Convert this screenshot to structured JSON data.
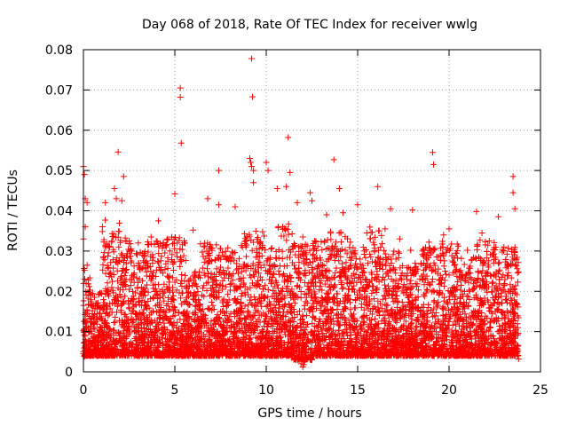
{
  "chart_data": {
    "type": "scatter",
    "title": "Day 068 of 2018, Rate Of TEC Index for receiver wwlg",
    "xlabel": "GPS time / hours",
    "ylabel": "ROTI / TECUs",
    "xlim": [
      0,
      25
    ],
    "ylim": [
      0,
      0.08
    ],
    "xticks": [
      0,
      5,
      10,
      15,
      20,
      25
    ],
    "yticks": [
      0,
      0.01,
      0.02,
      0.03,
      0.04,
      0.05,
      0.06,
      0.07,
      0.08
    ],
    "xtick_labels": [
      "0",
      "5",
      "10",
      "15",
      "20",
      "25"
    ],
    "ytick_labels": [
      "0",
      "0.01",
      "0.02",
      "0.03",
      "0.04",
      "0.05",
      "0.06",
      "0.07",
      "0.08"
    ],
    "grid": true,
    "marker": "+",
    "marker_color": "#ff0000",
    "series": [
      {
        "name": "wwlg",
        "points": [
          [
            9.2,
            0.0778
          ],
          [
            9.25,
            0.0683
          ],
          [
            5.3,
            0.0705
          ],
          [
            5.3,
            0.0682
          ],
          [
            5.35,
            0.0568
          ],
          [
            11.2,
            0.0582
          ],
          [
            1.9,
            0.0546
          ],
          [
            19.1,
            0.0545
          ],
          [
            19.15,
            0.0515
          ],
          [
            13.7,
            0.0527
          ],
          [
            9.1,
            0.053
          ],
          [
            9.15,
            0.052
          ],
          [
            9.2,
            0.051
          ],
          [
            9.3,
            0.05
          ],
          [
            7.4,
            0.05
          ],
          [
            11.3,
            0.0495
          ],
          [
            10.0,
            0.052
          ],
          [
            10.1,
            0.05
          ],
          [
            0.0,
            0.051
          ],
          [
            0.05,
            0.049
          ],
          [
            2.2,
            0.0485
          ],
          [
            23.5,
            0.0485
          ],
          [
            9.3,
            0.047
          ],
          [
            11.1,
            0.046
          ],
          [
            16.1,
            0.046
          ],
          [
            14.0,
            0.0455
          ],
          [
            1.7,
            0.0455
          ],
          [
            10.6,
            0.0455
          ],
          [
            5.0,
            0.0442
          ],
          [
            12.4,
            0.0445
          ],
          [
            23.5,
            0.0445
          ],
          [
            0.1,
            0.043
          ],
          [
            0.2,
            0.042
          ],
          [
            1.2,
            0.042
          ],
          [
            1.8,
            0.043
          ],
          [
            2.1,
            0.0425
          ],
          [
            6.8,
            0.043
          ],
          [
            7.4,
            0.0415
          ],
          [
            8.3,
            0.041
          ],
          [
            11.7,
            0.042
          ],
          [
            12.5,
            0.0425
          ],
          [
            15.0,
            0.0415
          ],
          [
            16.8,
            0.0405
          ],
          [
            18.0,
            0.0402
          ],
          [
            21.5,
            0.0398
          ],
          [
            22.7,
            0.0385
          ],
          [
            23.6,
            0.0405
          ],
          [
            13.3,
            0.039
          ],
          [
            14.2,
            0.0395
          ],
          [
            4.1,
            0.0375
          ],
          [
            0.1,
            0.036
          ],
          [
            0.0,
            0.033
          ],
          [
            0.2,
            0.0265
          ],
          [
            0.15,
            0.022
          ],
          [
            0.0,
            0.0165
          ],
          [
            6.0,
            0.0352
          ],
          [
            20.0,
            0.0355
          ],
          [
            19.7,
            0.034
          ],
          [
            17.3,
            0.033
          ],
          [
            3.0,
            0.032
          ],
          [
            4.6,
            0.033
          ],
          [
            3.7,
            0.0335
          ],
          [
            8.9,
            0.0325
          ],
          [
            21.8,
            0.0345
          ],
          [
            22.2,
            0.0325
          ],
          [
            18.9,
            0.0322
          ],
          [
            20.5,
            0.0312
          ],
          [
            10.9,
            0.036
          ],
          [
            12.0,
            0.0335
          ],
          [
            15.5,
            0.0345
          ],
          [
            16.5,
            0.0355
          ],
          [
            2.6,
            0.0305
          ],
          [
            6.4,
            0.0318
          ],
          [
            7.9,
            0.0308
          ],
          [
            14.6,
            0.0322
          ],
          [
            17.9,
            0.0302
          ],
          [
            21.0,
            0.0302
          ],
          [
            23.0,
            0.031
          ],
          [
            13.6,
            0.03
          ],
          [
            9.8,
            0.0348
          ],
          [
            12.0,
            0.0012
          ],
          [
            12.05,
            0.0018
          ],
          [
            11.9,
            0.002
          ],
          [
            12.1,
            0.0025
          ],
          [
            12.2,
            0.0032
          ],
          [
            0.0,
            0.0045
          ],
          [
            0.05,
            0.0038
          ],
          [
            23.7,
            0.0045
          ],
          [
            23.8,
            0.0032
          ],
          [
            11.4,
            0.0035
          ]
        ],
        "bands": [
          {
            "x_from": 0.0,
            "x_to": 0.4,
            "y_low": 0.004,
            "y_high": 0.026
          },
          {
            "x_from": 0.4,
            "x_to": 1.0,
            "y_low": 0.004,
            "y_high": 0.02
          },
          {
            "x_from": 1.0,
            "x_to": 2.0,
            "y_low": 0.004,
            "y_high": 0.038
          },
          {
            "x_from": 2.0,
            "x_to": 2.6,
            "y_low": 0.004,
            "y_high": 0.034
          },
          {
            "x_from": 2.6,
            "x_to": 3.5,
            "y_low": 0.004,
            "y_high": 0.03
          },
          {
            "x_from": 3.5,
            "x_to": 4.7,
            "y_low": 0.004,
            "y_high": 0.033
          },
          {
            "x_from": 4.7,
            "x_to": 5.6,
            "y_low": 0.004,
            "y_high": 0.034
          },
          {
            "x_from": 5.6,
            "x_to": 6.5,
            "y_low": 0.004,
            "y_high": 0.025
          },
          {
            "x_from": 6.5,
            "x_to": 7.6,
            "y_low": 0.004,
            "y_high": 0.032
          },
          {
            "x_from": 7.6,
            "x_to": 8.6,
            "y_low": 0.004,
            "y_high": 0.03
          },
          {
            "x_from": 8.6,
            "x_to": 9.6,
            "y_low": 0.004,
            "y_high": 0.035
          },
          {
            "x_from": 9.6,
            "x_to": 10.5,
            "y_low": 0.004,
            "y_high": 0.034
          },
          {
            "x_from": 10.5,
            "x_to": 11.5,
            "y_low": 0.004,
            "y_high": 0.037
          },
          {
            "x_from": 11.5,
            "x_to": 12.5,
            "y_low": 0.003,
            "y_high": 0.032
          },
          {
            "x_from": 12.5,
            "x_to": 13.5,
            "y_low": 0.004,
            "y_high": 0.033
          },
          {
            "x_from": 13.5,
            "x_to": 14.5,
            "y_low": 0.004,
            "y_high": 0.035
          },
          {
            "x_from": 14.5,
            "x_to": 15.5,
            "y_low": 0.004,
            "y_high": 0.031
          },
          {
            "x_from": 15.5,
            "x_to": 16.5,
            "y_low": 0.004,
            "y_high": 0.036
          },
          {
            "x_from": 16.5,
            "x_to": 17.5,
            "y_low": 0.004,
            "y_high": 0.03
          },
          {
            "x_from": 17.5,
            "x_to": 18.5,
            "y_low": 0.004,
            "y_high": 0.027
          },
          {
            "x_from": 18.5,
            "x_to": 19.5,
            "y_low": 0.004,
            "y_high": 0.031
          },
          {
            "x_from": 19.5,
            "x_to": 20.5,
            "y_low": 0.004,
            "y_high": 0.033
          },
          {
            "x_from": 20.5,
            "x_to": 21.5,
            "y_low": 0.004,
            "y_high": 0.029
          },
          {
            "x_from": 21.5,
            "x_to": 22.5,
            "y_low": 0.004,
            "y_high": 0.033
          },
          {
            "x_from": 22.5,
            "x_to": 23.8,
            "y_low": 0.004,
            "y_high": 0.031
          }
        ]
      }
    ]
  }
}
